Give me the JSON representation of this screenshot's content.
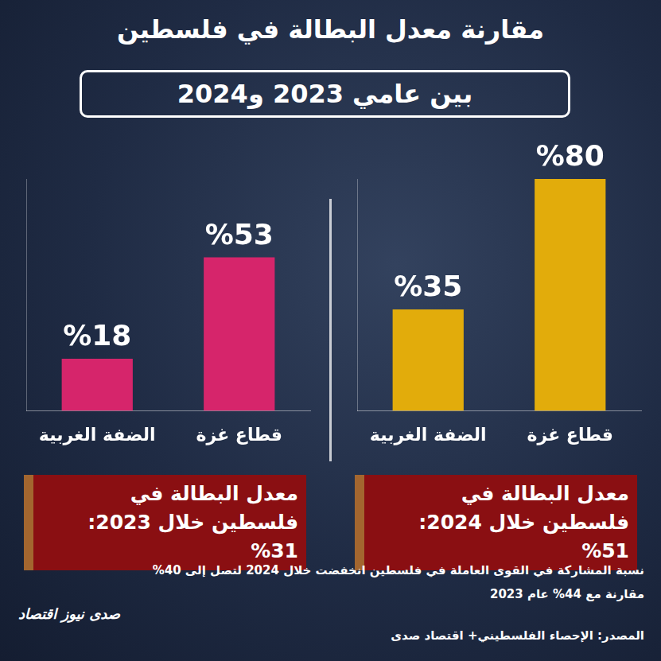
{
  "title": "مقارنة معدل البطالة في فلسطين",
  "subtitle": "بين عامي 2023 و2024",
  "chart_data": [
    {
      "type": "bar",
      "title": "معدل البطالة في فلسطين خلال 2024: 51%",
      "categories": [
        "الضفة الغربية",
        "قطاع غزة"
      ],
      "values": [
        35,
        80
      ],
      "value_labels": [
        "%35",
        "%80"
      ],
      "color": "#e2ac0b",
      "ylim": [
        0,
        80
      ],
      "grid": false,
      "data_labels": true,
      "tick_labels": "x"
    },
    {
      "type": "bar",
      "title": "معدل البطالة في فلسطين خلال 2023: 31%",
      "categories": [
        "الضفة الغربية",
        "قطاع غزة"
      ],
      "values": [
        18,
        53
      ],
      "value_labels": [
        "%18",
        "%53"
      ],
      "color": "#d6256b",
      "ylim": [
        0,
        80
      ],
      "grid": false,
      "data_labels": true,
      "tick_labels": "x"
    }
  ],
  "note": "نسبة المشاركة في القوى العاملة في فلسطين انخفضت خلال 2024 لتصل إلى 40% مقارنة مع 44% عام 2023",
  "source": "المصدر: الإحصاء الفلسطيني+ اقتصاد صدى",
  "logo": "صدى نيوز اقتصاد"
}
